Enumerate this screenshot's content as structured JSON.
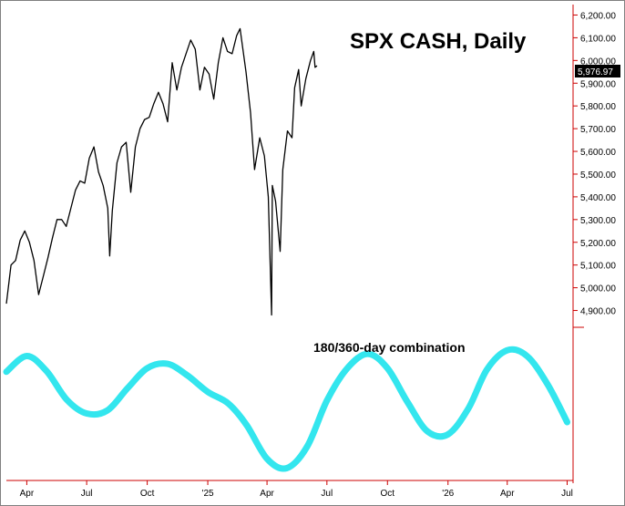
{
  "chart_data": {
    "type": "line",
    "title": "SPX CASH, Daily",
    "annotation": "180/360-day combination",
    "last_value_label": "5,976.97",
    "last_value": 5976.97,
    "y_ticks": [
      "6,200.00",
      "6,100.00",
      "6,000.00",
      "5,900.00",
      "5,800.00",
      "5,700.00",
      "5,600.00",
      "5,500.00",
      "5,400.00",
      "5,300.00",
      "5,200.00",
      "5,100.00",
      "5,000.00",
      "4,900.00"
    ],
    "ylim": [
      4850,
      6230
    ],
    "x_ticks": [
      "Apr",
      "Jul",
      "Oct",
      "'25",
      "Apr",
      "Jul",
      "Oct",
      "'26",
      "Apr",
      "Jul"
    ],
    "x_tick_dates": [
      "2024-04-01",
      "2024-07-01",
      "2024-10-01",
      "2025-01-01",
      "2025-04-01",
      "2025-07-01",
      "2025-10-01",
      "2026-01-01",
      "2026-04-01",
      "2026-07-01"
    ],
    "xlim": [
      "2024-03-01",
      "2026-07-10"
    ],
    "series": [
      {
        "type": "line",
        "color": "#000000",
        "points": [
          [
            "2024-03-01",
            4930
          ],
          [
            "2024-03-08",
            5100
          ],
          [
            "2024-03-15",
            5120
          ],
          [
            "2024-03-22",
            5210
          ],
          [
            "2024-03-29",
            5250
          ],
          [
            "2024-04-05",
            5200
          ],
          [
            "2024-04-12",
            5120
          ],
          [
            "2024-04-19",
            4970
          ],
          [
            "2024-04-26",
            5050
          ],
          [
            "2024-05-03",
            5130
          ],
          [
            "2024-05-10",
            5220
          ],
          [
            "2024-05-17",
            5300
          ],
          [
            "2024-05-24",
            5300
          ],
          [
            "2024-05-31",
            5270
          ],
          [
            "2024-06-07",
            5350
          ],
          [
            "2024-06-14",
            5430
          ],
          [
            "2024-06-21",
            5470
          ],
          [
            "2024-06-28",
            5460
          ],
          [
            "2024-07-05",
            5570
          ],
          [
            "2024-07-12",
            5620
          ],
          [
            "2024-07-19",
            5510
          ],
          [
            "2024-07-26",
            5450
          ],
          [
            "2024-08-02",
            5350
          ],
          [
            "2024-08-05",
            5140
          ],
          [
            "2024-08-09",
            5340
          ],
          [
            "2024-08-16",
            5550
          ],
          [
            "2024-08-23",
            5620
          ],
          [
            "2024-08-30",
            5640
          ],
          [
            "2024-09-06",
            5420
          ],
          [
            "2024-09-13",
            5620
          ],
          [
            "2024-09-20",
            5700
          ],
          [
            "2024-09-27",
            5740
          ],
          [
            "2024-10-04",
            5750
          ],
          [
            "2024-10-11",
            5810
          ],
          [
            "2024-10-18",
            5860
          ],
          [
            "2024-10-25",
            5810
          ],
          [
            "2024-11-01",
            5730
          ],
          [
            "2024-11-08",
            5990
          ],
          [
            "2024-11-15",
            5870
          ],
          [
            "2024-11-22",
            5970
          ],
          [
            "2024-11-29",
            6030
          ],
          [
            "2024-12-06",
            6090
          ],
          [
            "2024-12-13",
            6050
          ],
          [
            "2024-12-20",
            5870
          ],
          [
            "2024-12-27",
            5970
          ],
          [
            "2025-01-03",
            5940
          ],
          [
            "2025-01-10",
            5830
          ],
          [
            "2025-01-17",
            5990
          ],
          [
            "2025-01-24",
            6100
          ],
          [
            "2025-01-31",
            6040
          ],
          [
            "2025-02-07",
            6030
          ],
          [
            "2025-02-14",
            6110
          ],
          [
            "2025-02-19",
            6140
          ],
          [
            "2025-02-28",
            5950
          ],
          [
            "2025-03-07",
            5770
          ],
          [
            "2025-03-13",
            5520
          ],
          [
            "2025-03-21",
            5660
          ],
          [
            "2025-03-28",
            5580
          ],
          [
            "2025-04-03",
            5400
          ],
          [
            "2025-04-08",
            4880
          ],
          [
            "2025-04-09",
            5450
          ],
          [
            "2025-04-14",
            5380
          ],
          [
            "2025-04-21",
            5160
          ],
          [
            "2025-04-25",
            5520
          ],
          [
            "2025-05-02",
            5690
          ],
          [
            "2025-05-09",
            5660
          ],
          [
            "2025-05-13",
            5880
          ],
          [
            "2025-05-19",
            5960
          ],
          [
            "2025-05-23",
            5800
          ],
          [
            "2025-05-30",
            5920
          ],
          [
            "2025-06-06",
            6000
          ],
          [
            "2025-06-11",
            6040
          ],
          [
            "2025-06-13",
            5970
          ],
          [
            "2025-06-16",
            5976.97
          ]
        ]
      },
      {
        "type": "cycle",
        "name": "180/360-day combination",
        "color": "#33e6ee",
        "points": [
          [
            "2024-03-01",
            0.61
          ],
          [
            "2024-04-01",
            0.83
          ],
          [
            "2024-05-01",
            0.62
          ],
          [
            "2024-06-01",
            0.22
          ],
          [
            "2024-07-01",
            0.03
          ],
          [
            "2024-08-01",
            0.07
          ],
          [
            "2024-09-01",
            0.38
          ],
          [
            "2024-10-01",
            0.66
          ],
          [
            "2024-11-01",
            0.72
          ],
          [
            "2024-12-01",
            0.56
          ],
          [
            "2025-01-01",
            0.33
          ],
          [
            "2025-02-01",
            0.17
          ],
          [
            "2025-03-01",
            -0.13
          ],
          [
            "2025-04-01",
            -0.6
          ],
          [
            "2025-05-01",
            -0.73
          ],
          [
            "2025-06-01",
            -0.43
          ],
          [
            "2025-07-01",
            0.21
          ],
          [
            "2025-08-01",
            0.66
          ],
          [
            "2025-09-01",
            0.86
          ],
          [
            "2025-10-01",
            0.66
          ],
          [
            "2025-11-01",
            0.18
          ],
          [
            "2025-12-01",
            -0.22
          ],
          [
            "2026-01-01",
            -0.26
          ],
          [
            "2026-02-01",
            0.1
          ],
          [
            "2026-03-01",
            0.64
          ],
          [
            "2026-04-01",
            0.91
          ],
          [
            "2026-05-01",
            0.83
          ],
          [
            "2026-06-01",
            0.44
          ],
          [
            "2026-07-01",
            -0.09
          ]
        ]
      }
    ],
    "colors": {
      "price": "#000000",
      "cycle": "#33e6ee",
      "axis": "#cc0000",
      "last_box": "#000000"
    }
  }
}
